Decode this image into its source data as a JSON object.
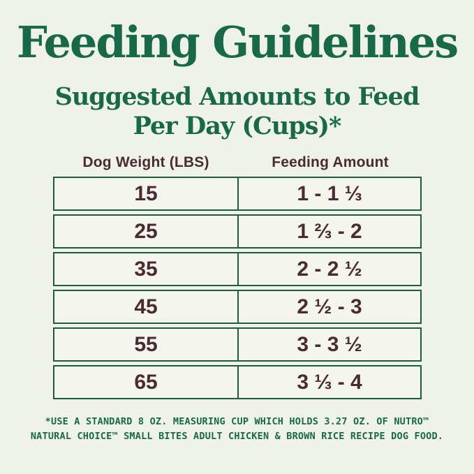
{
  "page": {
    "background_color": "#eff2e8",
    "green_color": "#17694a",
    "maroon_color": "#4a2a33",
    "border_color": "#1d5c42",
    "cell_background_color": "#f4f6ee"
  },
  "header": {
    "title": "Feeding Guidelines",
    "subtitle_line1": "Suggested Amounts to Feed",
    "subtitle_line2": "Per Day (Cups)*"
  },
  "table": {
    "headers": [
      "Dog Weight (LBS)",
      "Feeding Amount"
    ],
    "rows": [
      {
        "weight": "15",
        "amount": "1 - 1 ⅓"
      },
      {
        "weight": "25",
        "amount": "1 ⅔ - 2"
      },
      {
        "weight": "35",
        "amount": "2 - 2 ½"
      },
      {
        "weight": "45",
        "amount": "2 ½ - 3"
      },
      {
        "weight": "55",
        "amount": "3 - 3 ½"
      },
      {
        "weight": "65",
        "amount": "3 ⅓ - 4"
      }
    ]
  },
  "footnote": {
    "line1": "*USE A STANDARD 8 OZ. MEASURING CUP WHICH HOLDS 3.27 OZ. OF NUTRO™",
    "line2": "NATURAL CHOICE™ SMALL BITES ADULT CHICKEN & BROWN RICE RECIPE DOG FOOD."
  }
}
